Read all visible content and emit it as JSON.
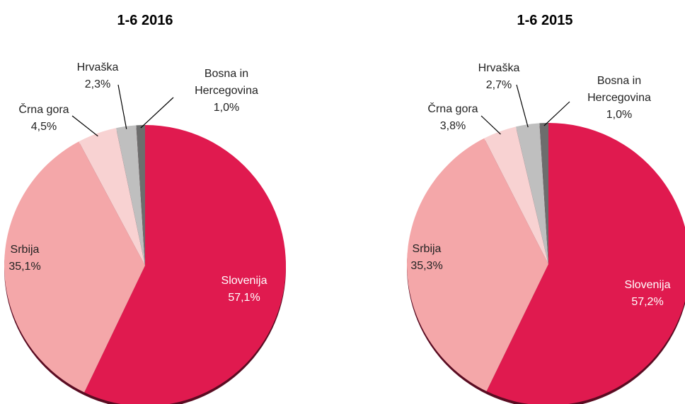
{
  "chart_data": [
    {
      "type": "pie",
      "title": "1-6 2016",
      "categories": [
        "Slovenija",
        "Srbija",
        "Črna gora",
        "Hrvaška",
        "Bosna in Hercegovina"
      ],
      "values": [
        57.1,
        35.1,
        4.5,
        2.3,
        1.0
      ],
      "value_labels": [
        "57,1%",
        "35,1%",
        "4,5%",
        "2,3%",
        "1,0%"
      ],
      "colors": [
        "#e01a4f",
        "#f4a7a9",
        "#f8d2d2",
        "#bfbfbf",
        "#6d6d6d"
      ]
    },
    {
      "type": "pie",
      "title": "1-6 2015",
      "categories": [
        "Slovenija",
        "Srbija",
        "Črna gora",
        "Hrvaška",
        "Bosna in Hercegovina"
      ],
      "values": [
        57.2,
        35.3,
        3.8,
        2.7,
        1.0
      ],
      "value_labels": [
        "57,2%",
        "35,3%",
        "3,8%",
        "2,7%",
        "1,0%"
      ],
      "colors": [
        "#e01a4f",
        "#f4a7a9",
        "#f8d2d2",
        "#bfbfbf",
        "#6d6d6d"
      ]
    }
  ]
}
